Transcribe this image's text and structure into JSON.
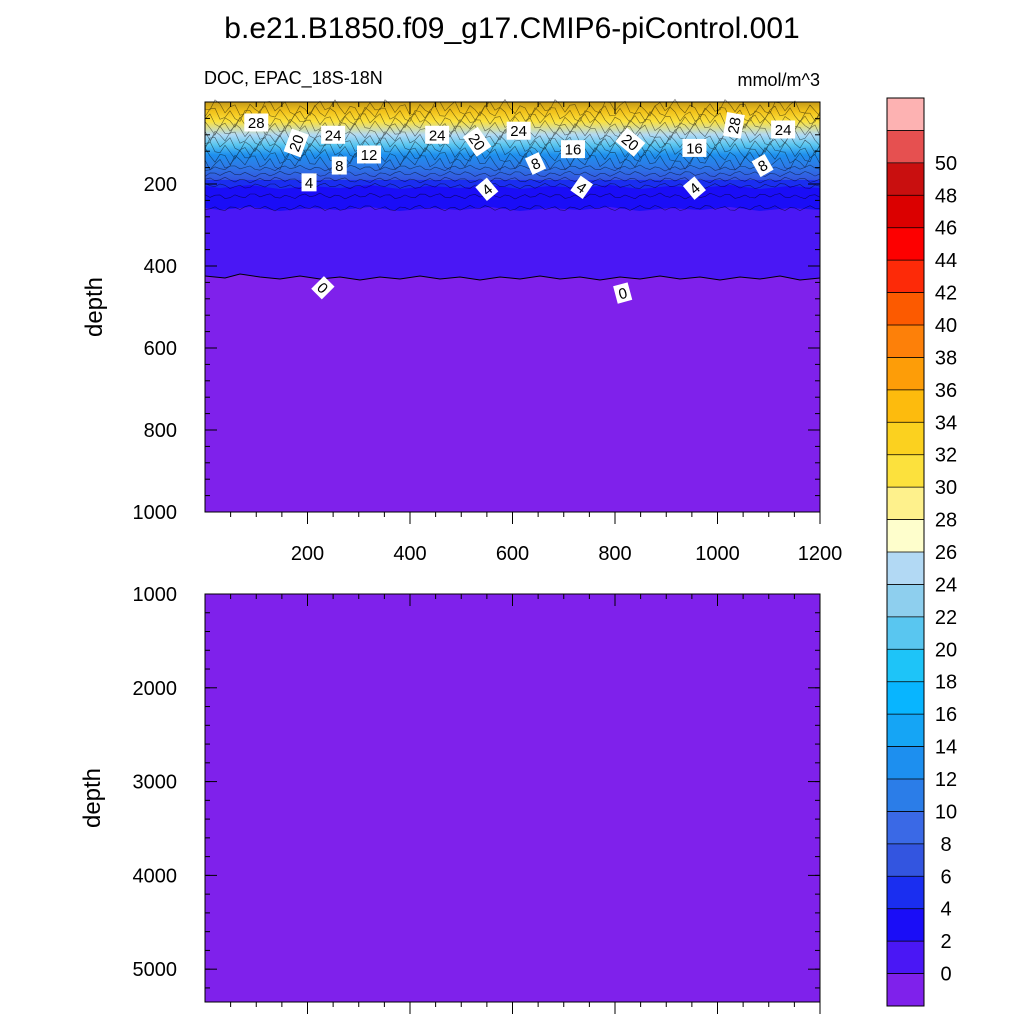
{
  "title": "b.e21.B1850.f09_g17.CMIP6-piControl.001",
  "chart_data": {
    "type": "heatmap",
    "variable": "DOC",
    "region": "EPAC_18S-18N",
    "units": "mmol/m^3",
    "x_ticks": [
      200,
      400,
      600,
      800,
      1000,
      1200
    ],
    "x_range": [
      0,
      1200
    ],
    "panels": [
      {
        "ylabel": "depth",
        "y_range": [
          0,
          1000
        ],
        "y_ticks": [
          200,
          400,
          600,
          800,
          1000
        ],
        "y_reversed": true,
        "contour_labels": [
          {
            "text": "28",
            "x": 100,
            "y": 50,
            "angle": 0
          },
          {
            "text": "20",
            "x": 178,
            "y": 100,
            "angle": -70
          },
          {
            "text": "24",
            "x": 250,
            "y": 80,
            "angle": 0
          },
          {
            "text": "12",
            "x": 320,
            "y": 128,
            "angle": 0
          },
          {
            "text": "8",
            "x": 262,
            "y": 155,
            "angle": 0
          },
          {
            "text": "4",
            "x": 203,
            "y": 196,
            "angle": 0
          },
          {
            "text": "0",
            "x": 230,
            "y": 453,
            "angle": 45
          },
          {
            "text": "24",
            "x": 453,
            "y": 80,
            "angle": 0
          },
          {
            "text": "20",
            "x": 531,
            "y": 97,
            "angle": 55
          },
          {
            "text": "24",
            "x": 612,
            "y": 70,
            "angle": 0
          },
          {
            "text": "8",
            "x": 645,
            "y": 150,
            "angle": -25
          },
          {
            "text": "4",
            "x": 550,
            "y": 213,
            "angle": -40
          },
          {
            "text": "16",
            "x": 718,
            "y": 115,
            "angle": 0
          },
          {
            "text": "4",
            "x": 735,
            "y": 208,
            "angle": 35
          },
          {
            "text": "20",
            "x": 830,
            "y": 98,
            "angle": 40
          },
          {
            "text": "0",
            "x": 815,
            "y": 466,
            "angle": -15
          },
          {
            "text": "16",
            "x": 955,
            "y": 112,
            "angle": 0
          },
          {
            "text": "4",
            "x": 955,
            "y": 210,
            "angle": -40
          },
          {
            "text": "28",
            "x": 1032,
            "y": 57,
            "angle": -80
          },
          {
            "text": "24",
            "x": 1128,
            "y": 67,
            "angle": 0
          },
          {
            "text": "8",
            "x": 1088,
            "y": 155,
            "angle": -30
          }
        ]
      },
      {
        "ylabel": "depth",
        "y_range": [
          1000,
          5350
        ],
        "y_ticks": [
          1000,
          2000,
          3000,
          4000,
          5000
        ],
        "y_reversed": true,
        "contour_labels": []
      }
    ],
    "colorbar": {
      "labels": [
        "0",
        "2",
        "4",
        "6",
        "8",
        "10",
        "12",
        "14",
        "16",
        "18",
        "20",
        "22",
        "24",
        "26",
        "28",
        "30",
        "32",
        "34",
        "36",
        "38",
        "40",
        "42",
        "44",
        "46",
        "48",
        "50"
      ],
      "colors": [
        "#7f21eb",
        "#4a17f5",
        "#1a0df7",
        "#1a2ef0",
        "#3355e0",
        "#3a69e6",
        "#2b7de8",
        "#1d8fef",
        "#15a5f5",
        "#08b5ff",
        "#1ec4f8",
        "#59c6f0",
        "#8ecfee",
        "#b2d9f4",
        "#fefecc",
        "#fef18c",
        "#fce13d",
        "#fbd11f",
        "#fdbb0d",
        "#fd9d08",
        "#fd8009",
        "#fc5a00",
        "#fd2a08",
        "#fd0000",
        "#db0000",
        "#c90f0f",
        "#e65050",
        "#fdb2b2"
      ]
    }
  }
}
